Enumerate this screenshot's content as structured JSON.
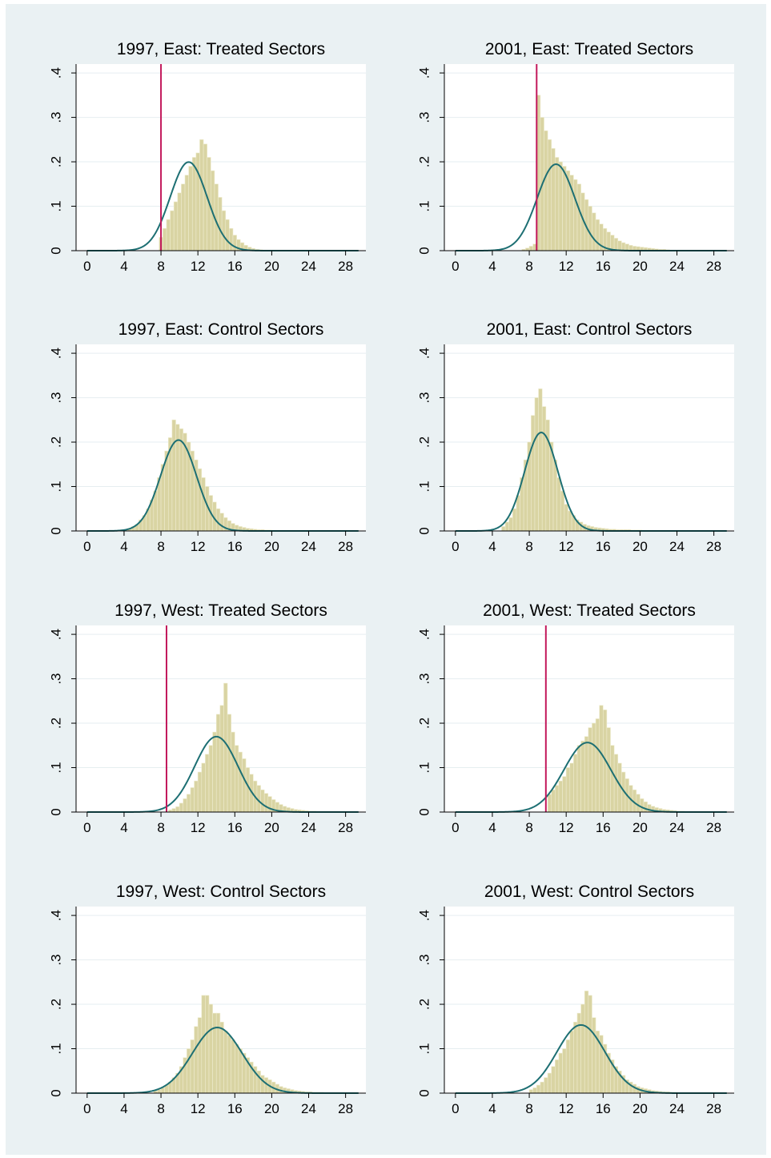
{
  "colors": {
    "background": "#eaf1f3",
    "plot_bg": "#ffffff",
    "bar_fill": "#d9d4a3",
    "bar_stroke": "#eeebce",
    "curve": "#1d6f73",
    "vline": "#c2185b",
    "grid": "#e6eef0"
  },
  "chart_data": [
    {
      "type": "bar",
      "title": "1997, East: Treated Sectors",
      "xticks": [
        "0",
        "4",
        "8",
        "12",
        "16",
        "20",
        "24",
        "28"
      ],
      "yticks": [
        "0",
        ".1",
        ".2",
        ".3",
        ".4"
      ],
      "xlim": [
        -1.2,
        30.2
      ],
      "ylim": [
        0,
        0.42
      ],
      "bin_width": 0.4,
      "bin_start": 7.8,
      "values": [
        0.03,
        0.05,
        0.07,
        0.09,
        0.11,
        0.13,
        0.15,
        0.17,
        0.19,
        0.21,
        0.22,
        0.25,
        0.24,
        0.21,
        0.18,
        0.15,
        0.12,
        0.09,
        0.07,
        0.05,
        0.035,
        0.025,
        0.018,
        0.012,
        0.008,
        0.005,
        0.003,
        0.002,
        0.001
      ],
      "normal": {
        "mean": 11.0,
        "sd": 2.0
      },
      "vline": 8.0
    },
    {
      "type": "bar",
      "title": "2001, East: Treated Sectors",
      "xticks": [
        "0",
        "4",
        "8",
        "12",
        "16",
        "20",
        "24",
        "28"
      ],
      "yticks": [
        "0",
        ".1",
        ".2",
        ".3",
        ".4"
      ],
      "xlim": [
        -1.2,
        30.2
      ],
      "ylim": [
        0,
        0.42
      ],
      "bin_width": 0.4,
      "bin_start": 7.2,
      "values": [
        0.003,
        0.006,
        0.01,
        0.015,
        0.35,
        0.3,
        0.27,
        0.25,
        0.23,
        0.21,
        0.2,
        0.19,
        0.18,
        0.17,
        0.16,
        0.15,
        0.13,
        0.115,
        0.1,
        0.085,
        0.07,
        0.06,
        0.05,
        0.042,
        0.035,
        0.028,
        0.022,
        0.018,
        0.015,
        0.012,
        0.01,
        0.009,
        0.008,
        0.007,
        0.006,
        0.005,
        0.004,
        0.003,
        0.003,
        0.002
      ],
      "normal": {
        "mean": 10.9,
        "sd": 2.05
      },
      "vline": 8.8
    },
    {
      "type": "bar",
      "title": "1997, East: Control Sectors",
      "xticks": [
        "0",
        "4",
        "8",
        "12",
        "16",
        "20",
        "24",
        "28"
      ],
      "yticks": [
        "0",
        ".1",
        ".2",
        ".3",
        ".4"
      ],
      "xlim": [
        -1.2,
        30.2
      ],
      "ylim": [
        0,
        0.42
      ],
      "bin_width": 0.4,
      "bin_start": 4.0,
      "values": [
        0.003,
        0.006,
        0.01,
        0.015,
        0.025,
        0.035,
        0.05,
        0.07,
        0.09,
        0.12,
        0.15,
        0.18,
        0.21,
        0.25,
        0.24,
        0.23,
        0.22,
        0.2,
        0.18,
        0.16,
        0.14,
        0.12,
        0.1,
        0.08,
        0.065,
        0.05,
        0.04,
        0.03,
        0.023,
        0.017,
        0.013,
        0.01,
        0.008,
        0.006,
        0.005,
        0.004,
        0.003,
        0.003,
        0.002,
        0.002
      ],
      "normal": {
        "mean": 9.9,
        "sd": 1.95
      }
    },
    {
      "type": "bar",
      "title": "2001, East: Control Sectors",
      "xticks": [
        "0",
        "4",
        "8",
        "12",
        "16",
        "20",
        "24",
        "28"
      ],
      "yticks": [
        "0",
        ".1",
        ".2",
        ".3",
        ".4"
      ],
      "xlim": [
        -1.2,
        30.2
      ],
      "ylim": [
        0,
        0.42
      ],
      "bin_width": 0.4,
      "bin_start": 5.0,
      "values": [
        0.01,
        0.02,
        0.03,
        0.05,
        0.08,
        0.12,
        0.16,
        0.2,
        0.26,
        0.3,
        0.32,
        0.28,
        0.25,
        0.2,
        0.16,
        0.12,
        0.09,
        0.06,
        0.045,
        0.035,
        0.025,
        0.02,
        0.015,
        0.012,
        0.01,
        0.008,
        0.007,
        0.006,
        0.005,
        0.004,
        0.004,
        0.003,
        0.003,
        0.003,
        0.003,
        0.002,
        0.002,
        0.002
      ],
      "normal": {
        "mean": 9.3,
        "sd": 1.8
      }
    },
    {
      "type": "bar",
      "title": "1997, West: Treated Sectors",
      "xticks": [
        "0",
        "4",
        "8",
        "12",
        "16",
        "20",
        "24",
        "28"
      ],
      "yticks": [
        "0",
        ".1",
        ".2",
        ".3",
        ".4"
      ],
      "xlim": [
        -1.2,
        30.2
      ],
      "ylim": [
        0,
        0.42
      ],
      "bin_width": 0.4,
      "bin_start": 8.8,
      "values": [
        0.005,
        0.008,
        0.012,
        0.02,
        0.03,
        0.04,
        0.055,
        0.07,
        0.09,
        0.11,
        0.13,
        0.15,
        0.18,
        0.22,
        0.24,
        0.29,
        0.22,
        0.18,
        0.15,
        0.135,
        0.12,
        0.1,
        0.085,
        0.07,
        0.06,
        0.05,
        0.042,
        0.035,
        0.028,
        0.022,
        0.017,
        0.013,
        0.01,
        0.008,
        0.006,
        0.005,
        0.004,
        0.003,
        0.002,
        0.002,
        0.001,
        0.001,
        0.001
      ],
      "normal": {
        "mean": 14.0,
        "sd": 2.35
      },
      "vline": 8.6
    },
    {
      "type": "bar",
      "title": "2001, West: Treated Sectors",
      "xticks": [
        "0",
        "4",
        "8",
        "12",
        "16",
        "20",
        "24",
        "28"
      ],
      "yticks": [
        "0",
        ".1",
        ".2",
        ".3",
        ".4"
      ],
      "xlim": [
        -1.2,
        30.2
      ],
      "ylim": [
        0,
        0.42
      ],
      "bin_width": 0.4,
      "bin_start": 10.0,
      "values": [
        0.04,
        0.05,
        0.06,
        0.07,
        0.08,
        0.1,
        0.11,
        0.13,
        0.15,
        0.16,
        0.17,
        0.19,
        0.2,
        0.21,
        0.24,
        0.23,
        0.19,
        0.15,
        0.13,
        0.11,
        0.09,
        0.075,
        0.06,
        0.05,
        0.04,
        0.03,
        0.023,
        0.017,
        0.013,
        0.01,
        0.008,
        0.006,
        0.005,
        0.004,
        0.003,
        0.002,
        0.002
      ],
      "normal": {
        "mean": 14.3,
        "sd": 2.55
      },
      "vline": 9.8
    },
    {
      "type": "bar",
      "title": "1997, West: Control Sectors",
      "xticks": [
        "0",
        "4",
        "8",
        "12",
        "16",
        "20",
        "24",
        "28"
      ],
      "yticks": [
        "0",
        ".1",
        ".2",
        ".3",
        ".4"
      ],
      "xlim": [
        -1.2,
        30.2
      ],
      "ylim": [
        0,
        0.42
      ],
      "bin_width": 0.4,
      "bin_start": 7.2,
      "values": [
        0.005,
        0.008,
        0.012,
        0.018,
        0.025,
        0.035,
        0.045,
        0.06,
        0.08,
        0.1,
        0.12,
        0.15,
        0.17,
        0.22,
        0.22,
        0.2,
        0.18,
        0.18,
        0.16,
        0.14,
        0.13,
        0.12,
        0.11,
        0.1,
        0.09,
        0.08,
        0.07,
        0.06,
        0.05,
        0.04,
        0.035,
        0.03,
        0.025,
        0.02,
        0.015,
        0.012,
        0.01,
        0.008,
        0.006,
        0.005,
        0.004,
        0.003,
        0.003,
        0.002,
        0.002,
        0.002,
        0.001
      ],
      "normal": {
        "mean": 14.1,
        "sd": 2.7
      }
    },
    {
      "type": "bar",
      "title": "2001, West: Control Sectors",
      "xticks": [
        "0",
        "4",
        "8",
        "12",
        "16",
        "20",
        "24",
        "28"
      ],
      "yticks": [
        "0",
        ".1",
        ".2",
        ".3",
        ".4"
      ],
      "xlim": [
        -1.2,
        30.2
      ],
      "ylim": [
        0,
        0.42
      ],
      "bin_width": 0.4,
      "bin_start": 8.0,
      "values": [
        0.008,
        0.012,
        0.018,
        0.025,
        0.035,
        0.045,
        0.06,
        0.075,
        0.09,
        0.1,
        0.12,
        0.14,
        0.16,
        0.18,
        0.2,
        0.23,
        0.22,
        0.17,
        0.14,
        0.13,
        0.11,
        0.09,
        0.075,
        0.06,
        0.05,
        0.04,
        0.03,
        0.025,
        0.02,
        0.015,
        0.012,
        0.01,
        0.008,
        0.006,
        0.005,
        0.004,
        0.003,
        0.003,
        0.002,
        0.002
      ],
      "normal": {
        "mean": 13.6,
        "sd": 2.6
      }
    }
  ]
}
